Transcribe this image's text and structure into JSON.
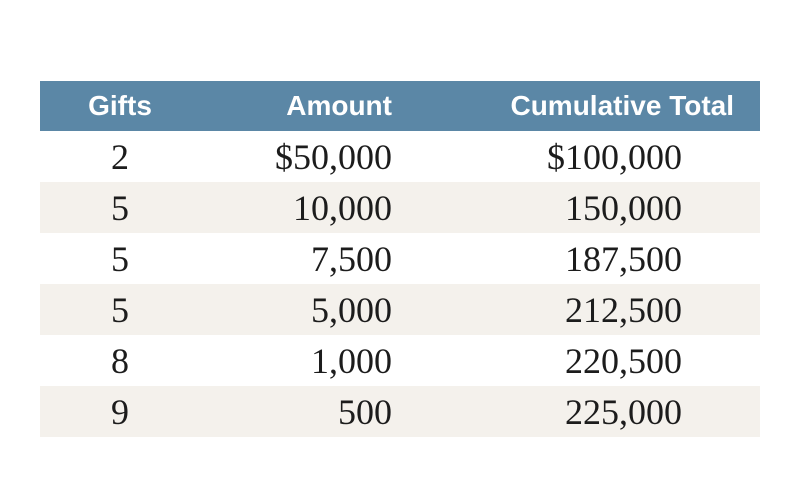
{
  "chart_data": {
    "type": "table",
    "columns": [
      "Gifts",
      "Amount",
      "Cumulative Total"
    ],
    "rows": [
      [
        "2",
        "$50,000",
        "$100,000"
      ],
      [
        "5",
        "10,000",
        "150,000"
      ],
      [
        "5",
        "7,500",
        "187,500"
      ],
      [
        "5",
        "5,000",
        "212,500"
      ],
      [
        "8",
        "1,000",
        "220,500"
      ],
      [
        "9",
        "500",
        "225,000"
      ]
    ]
  },
  "colors": {
    "header_bg": "#5b87a6",
    "header_text": "#ffffff",
    "row_odd_bg": "#ffffff",
    "row_even_bg": "#f4f1ec",
    "body_text": "#1c1c1c"
  }
}
